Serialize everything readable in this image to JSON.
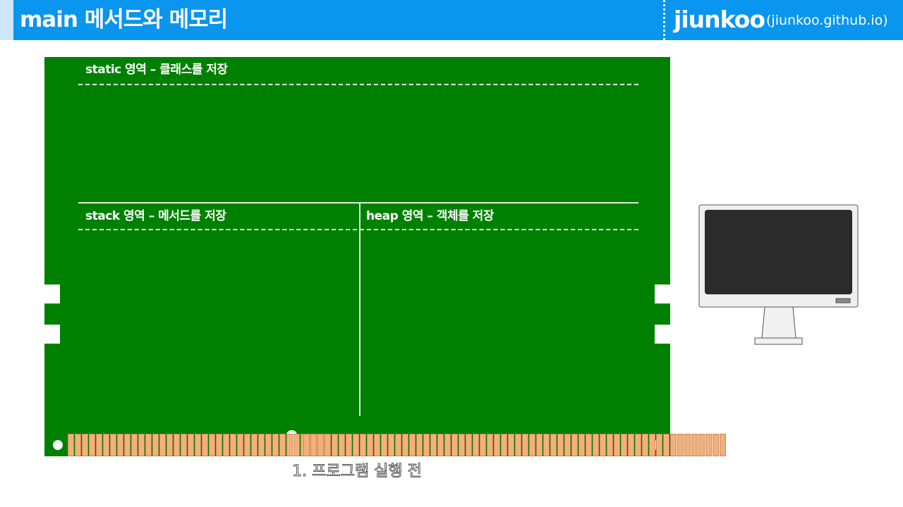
{
  "header": {
    "title": "main 메서드와 메모리",
    "brand": "jiunkoo",
    "url": "(jiunkoo.github.io)"
  },
  "memory": {
    "static_label": "static 영역 – 클래스를 저장",
    "stack_label": "stack 영역 – 메서드를 저장",
    "heap_label": "heap 영역 – 객체를 저장"
  },
  "caption": "1. 프로그램 실행 전",
  "icons": [
    "ram-module-icon",
    "monitor-icon"
  ],
  "colors": {
    "header": "#0a95ee",
    "header_accent": "#cce7fb",
    "board": "#008000",
    "pin": "#f3b07a"
  }
}
